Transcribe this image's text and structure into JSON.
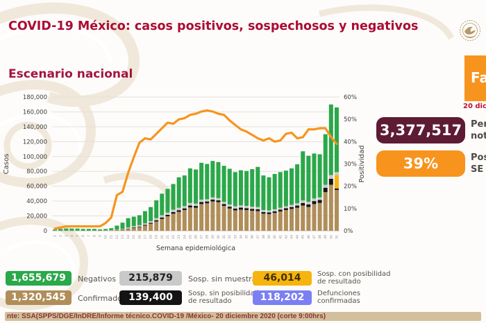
{
  "header": {
    "title": "COVID-19 México: casos positivos, sospechosos y negativos"
  },
  "section_title": "Escenario nacional",
  "chart_data": {
    "type": "bar",
    "subtype": "stacked-bars-with-line-overlay",
    "title": "Escenario nacional",
    "xlabel": "Semana epidemiológica",
    "ylabel": "Casos",
    "y2label": "Positividad",
    "ylim": [
      0,
      180000
    ],
    "y2lim": [
      0,
      60
    ],
    "yticks": [
      0,
      20000,
      40000,
      60000,
      80000,
      100000,
      120000,
      140000,
      160000,
      180000
    ],
    "y2ticks": [
      0,
      10,
      20,
      30,
      40,
      50,
      60
    ],
    "grid": "horizontal",
    "legend_position": "bottom",
    "categories": [
      "1",
      "2",
      "3",
      "4",
      "5",
      "6",
      "7",
      "8",
      "9",
      "10",
      "11",
      "12",
      "13",
      "14",
      "15",
      "16",
      "17",
      "18",
      "19",
      "20",
      "21",
      "22",
      "23",
      "24",
      "25",
      "26",
      "27",
      "28",
      "29",
      "30",
      "31",
      "32",
      "33",
      "34",
      "35",
      "36",
      "37",
      "38",
      "39",
      "40",
      "41",
      "42",
      "43",
      "44",
      "45",
      "46",
      "47",
      "48",
      "49",
      "50",
      "51"
    ],
    "series": [
      {
        "name": "Confirmados",
        "color": "#b08e5a",
        "values": [
          100,
          100,
          100,
          100,
          100,
          100,
          100,
          100,
          200,
          300,
          500,
          800,
          1500,
          2500,
          4000,
          5000,
          7000,
          9500,
          12500,
          16000,
          19500,
          23000,
          25500,
          28000,
          31500,
          31000,
          36000,
          37000,
          39500,
          38500,
          33500,
          30000,
          27500,
          28500,
          28000,
          27000,
          26500,
          23000,
          22500,
          24000,
          26000,
          28000,
          29500,
          31000,
          34000,
          32000,
          36000,
          37500,
          52000,
          62000,
          55000
        ]
      },
      {
        "name": "Sosp. sin posibilidad de resultado",
        "color": "#161616",
        "values": [
          0,
          0,
          0,
          0,
          0,
          0,
          0,
          0,
          0,
          0,
          100,
          200,
          300,
          500,
          700,
          800,
          1000,
          1200,
          1800,
          2000,
          2000,
          2200,
          2300,
          2200,
          2500,
          2500,
          2700,
          2500,
          2500,
          2500,
          2500,
          2500,
          2500,
          2700,
          2500,
          2500,
          2500,
          2200,
          2200,
          2300,
          2500,
          2500,
          2500,
          3000,
          3500,
          3500,
          4000,
          4000,
          6000,
          8000,
          2000
        ]
      },
      {
        "name": "Sosp. con posibilidad de resultado",
        "color": "#f6b40e",
        "values": [
          0,
          0,
          0,
          0,
          0,
          0,
          0,
          0,
          0,
          0,
          0,
          0,
          0,
          0,
          0,
          0,
          0,
          0,
          0,
          0,
          0,
          0,
          0,
          0,
          0,
          0,
          0,
          0,
          0,
          0,
          0,
          0,
          0,
          0,
          0,
          0,
          0,
          0,
          0,
          0,
          0,
          0,
          0,
          0,
          0,
          0,
          0,
          0,
          0,
          0,
          18000
        ]
      },
      {
        "name": "Sosp. sin muestra",
        "color": "#c9c9c9",
        "values": [
          100,
          100,
          100,
          100,
          100,
          100,
          100,
          100,
          100,
          200,
          300,
          500,
          700,
          1500,
          1500,
          1800,
          2000,
          2300,
          2700,
          3000,
          3000,
          3300,
          3200,
          3000,
          3500,
          3000,
          3300,
          3000,
          3000,
          3000,
          3000,
          3000,
          3000,
          3000,
          3000,
          3000,
          3000,
          2800,
          2800,
          2700,
          2500,
          2500,
          3000,
          3000,
          3500,
          3500,
          3500,
          3500,
          4000,
          5000,
          4000
        ]
      },
      {
        "name": "Negativos",
        "color": "#2aa84a",
        "values": [
          1400,
          2400,
          2900,
          2900,
          2900,
          2400,
          2400,
          2400,
          1700,
          2000,
          2600,
          5500,
          8500,
          12500,
          12800,
          13400,
          16500,
          19000,
          24000,
          29000,
          32000,
          34500,
          41000,
          41300,
          46500,
          46000,
          49500,
          47500,
          49000,
          48500,
          48500,
          48000,
          46000,
          47300,
          47000,
          50500,
          54000,
          46500,
          44500,
          47500,
          48000,
          48000,
          49000,
          52500,
          66000,
          62000,
          60500,
          58000,
          68000,
          95000,
          87000
        ]
      }
    ],
    "line": {
      "name": "Positividad (%)",
      "color": "#f7941e",
      "values": [
        1,
        1.5,
        2,
        2,
        2,
        2,
        2,
        2,
        2,
        3.5,
        6,
        16,
        17.5,
        26,
        33,
        39.5,
        41.5,
        41,
        43.5,
        46,
        48.5,
        48,
        50,
        50.5,
        52,
        52.5,
        53.5,
        54,
        53.5,
        52.5,
        52,
        49.5,
        47.5,
        45.5,
        44.5,
        43,
        41.5,
        40.5,
        41.5,
        40,
        40.5,
        43.5,
        44,
        41.5,
        42,
        45.5,
        45.5,
        46,
        46,
        42,
        39
      ]
    }
  },
  "panel": {
    "phase_label": "Fa",
    "date_label": "20 dic",
    "notified_value": "3,377,517",
    "notified_line1": "Per",
    "notified_line2": "not",
    "positivity_value": "39%",
    "positivity_line1": "Pos",
    "positivity_line2": "SE 5",
    "accent_orange": "#f7941e",
    "maroon": "#5e1b34"
  },
  "legend": {
    "items": [
      {
        "value": "1,655,679",
        "label": "Negativos",
        "color": "#2aa84a",
        "text_color": "#ffffff"
      },
      {
        "value": "215,879",
        "label": "Sosp. sin muestra",
        "color": "#c9c9c9",
        "text_color": "#222222"
      },
      {
        "value": "46,014",
        "label": "Sosp. con posibilidad\nde resultado",
        "color": "#f6b40e",
        "text_color": "#3f3000"
      },
      {
        "value": "1,320,545",
        "label": "Confirmados",
        "color": "#b08e5a",
        "text_color": "#ffffff"
      },
      {
        "value": "139,400",
        "label": "Sosp. sin posibilidad\nde resultado",
        "color": "#141414",
        "text_color": "#ffffff"
      },
      {
        "value": "118,202",
        "label": "Defunciones\nconfirmadas",
        "color": "#7b7ff2",
        "text_color": "#ffffff"
      }
    ]
  },
  "footer": {
    "source": "nte: SSA(SPPS/DGE/InDRE/Informe técnico.COVID-19 /México- 20 diciembre 2020 (corte 9:00hrs)"
  }
}
